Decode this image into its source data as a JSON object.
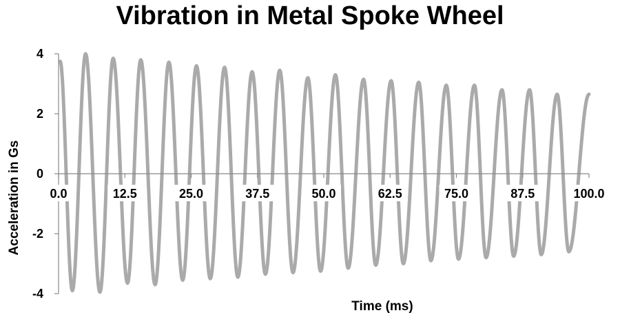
{
  "chart_data": {
    "type": "line",
    "title": "Vibration in Metal Spoke Wheel",
    "xlabel": "Time (ms)",
    "ylabel": "Acceleration in Gs",
    "xlim": [
      0,
      100
    ],
    "ylim": [
      -4,
      4
    ],
    "x_ticks": [
      "0.0",
      "12.5",
      "25.0",
      "37.5",
      "50.0",
      "62.5",
      "75.0",
      "87.5",
      "100.0"
    ],
    "y_ticks": [
      "4",
      "2",
      "0",
      "-2",
      "-4"
    ],
    "grid": false,
    "legend": "none",
    "series": [
      {
        "color": "#aaaaaa",
        "peaks": [
          {
            "x": 0.3,
            "y": 3.75
          },
          {
            "x": 5.1,
            "y": 4.0
          },
          {
            "x": 10.3,
            "y": 3.85
          },
          {
            "x": 15.5,
            "y": 3.8
          },
          {
            "x": 20.8,
            "y": 3.72
          },
          {
            "x": 26.0,
            "y": 3.6
          },
          {
            "x": 31.3,
            "y": 3.55
          },
          {
            "x": 36.5,
            "y": 3.4
          },
          {
            "x": 41.7,
            "y": 3.45
          },
          {
            "x": 47.0,
            "y": 3.2
          },
          {
            "x": 52.2,
            "y": 3.3
          },
          {
            "x": 57.5,
            "y": 3.15
          },
          {
            "x": 62.7,
            "y": 3.1
          },
          {
            "x": 67.9,
            "y": 3.05
          },
          {
            "x": 73.1,
            "y": 2.95
          },
          {
            "x": 78.4,
            "y": 2.95
          },
          {
            "x": 83.6,
            "y": 2.8
          },
          {
            "x": 88.8,
            "y": 2.8
          },
          {
            "x": 94.0,
            "y": 2.65
          }
        ],
        "troughs": [
          {
            "x": 2.6,
            "y": -3.9
          },
          {
            "x": 7.8,
            "y": -3.95
          },
          {
            "x": 13.0,
            "y": -3.65
          },
          {
            "x": 18.2,
            "y": -3.7
          },
          {
            "x": 23.4,
            "y": -3.55
          },
          {
            "x": 28.6,
            "y": -3.5
          },
          {
            "x": 33.8,
            "y": -3.45
          },
          {
            "x": 39.0,
            "y": -3.35
          },
          {
            "x": 44.2,
            "y": -3.3
          },
          {
            "x": 49.4,
            "y": -3.25
          },
          {
            "x": 54.6,
            "y": -3.15
          },
          {
            "x": 59.8,
            "y": -3.05
          },
          {
            "x": 65.0,
            "y": -3.0
          },
          {
            "x": 70.2,
            "y": -2.9
          },
          {
            "x": 75.4,
            "y": -2.85
          },
          {
            "x": 80.6,
            "y": -2.8
          },
          {
            "x": 85.8,
            "y": -2.75
          },
          {
            "x": 91.0,
            "y": -2.7
          },
          {
            "x": 96.2,
            "y": -2.6
          }
        ],
        "end": {
          "x": 100.0,
          "y": 2.65
        }
      }
    ]
  }
}
